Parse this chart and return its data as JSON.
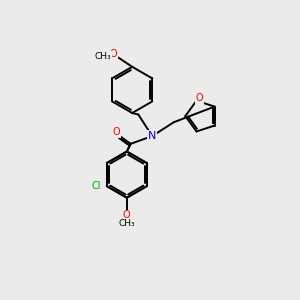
{
  "background_color": "#ebebeb",
  "bond_color": "#000000",
  "atom_colors": {
    "O": "#ff0000",
    "N": "#0000cc",
    "Cl": "#00aa00",
    "C": "#000000"
  },
  "figsize": [
    3.0,
    3.0
  ],
  "dpi": 100,
  "lw": 1.4,
  "ring_r": 30,
  "furan_r": 22
}
